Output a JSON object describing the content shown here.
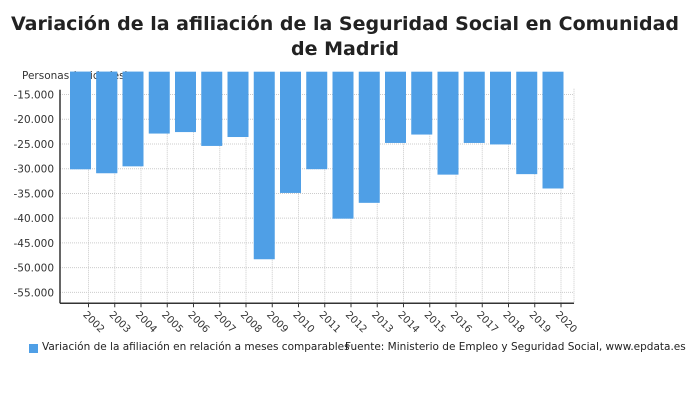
{
  "chart_data": {
    "type": "bar",
    "title": "Variación de la afiliación de la Seguridad Social en Comunidad de Madrid",
    "ylabel": "Personas (unidades)",
    "xlabel": "",
    "categories": [
      "2002",
      "2003",
      "2004",
      "2005",
      "2006",
      "2007",
      "2008",
      "2009",
      "2010",
      "2011",
      "2012",
      "2013",
      "2014",
      "2015",
      "2016",
      "2017",
      "2018",
      "2019",
      "2020"
    ],
    "series": [
      {
        "name": "Variación de la afiliación en relación a meses comparables",
        "values": [
          -30100,
          -30900,
          -29500,
          -22900,
          -22600,
          -25400,
          -23600,
          -48300,
          -34900,
          -30100,
          -40100,
          -36900,
          -24800,
          -23100,
          -31200,
          -24800,
          -25100,
          -31100,
          -34000
        ]
      }
    ],
    "yticks": [
      -15000,
      -20000,
      -25000,
      -30000,
      -35000,
      -40000,
      -45000,
      -50000,
      -55000
    ],
    "ytick_labels": [
      "-15.000",
      "-20.000",
      "-25.000",
      "-30.000",
      "-35.000",
      "-40.000",
      "-45.000",
      "-50.000",
      "-55.000"
    ],
    "ylim": [
      -57200,
      -10400
    ],
    "grid": true,
    "legend": "bottom-left",
    "source": "Fuente: Ministerio de Empleo y Seguridad Social, www.epdata.es",
    "colors": {
      "bar": "#4f9fe6",
      "grid": "#cccccc",
      "axis": "#333333"
    }
  }
}
